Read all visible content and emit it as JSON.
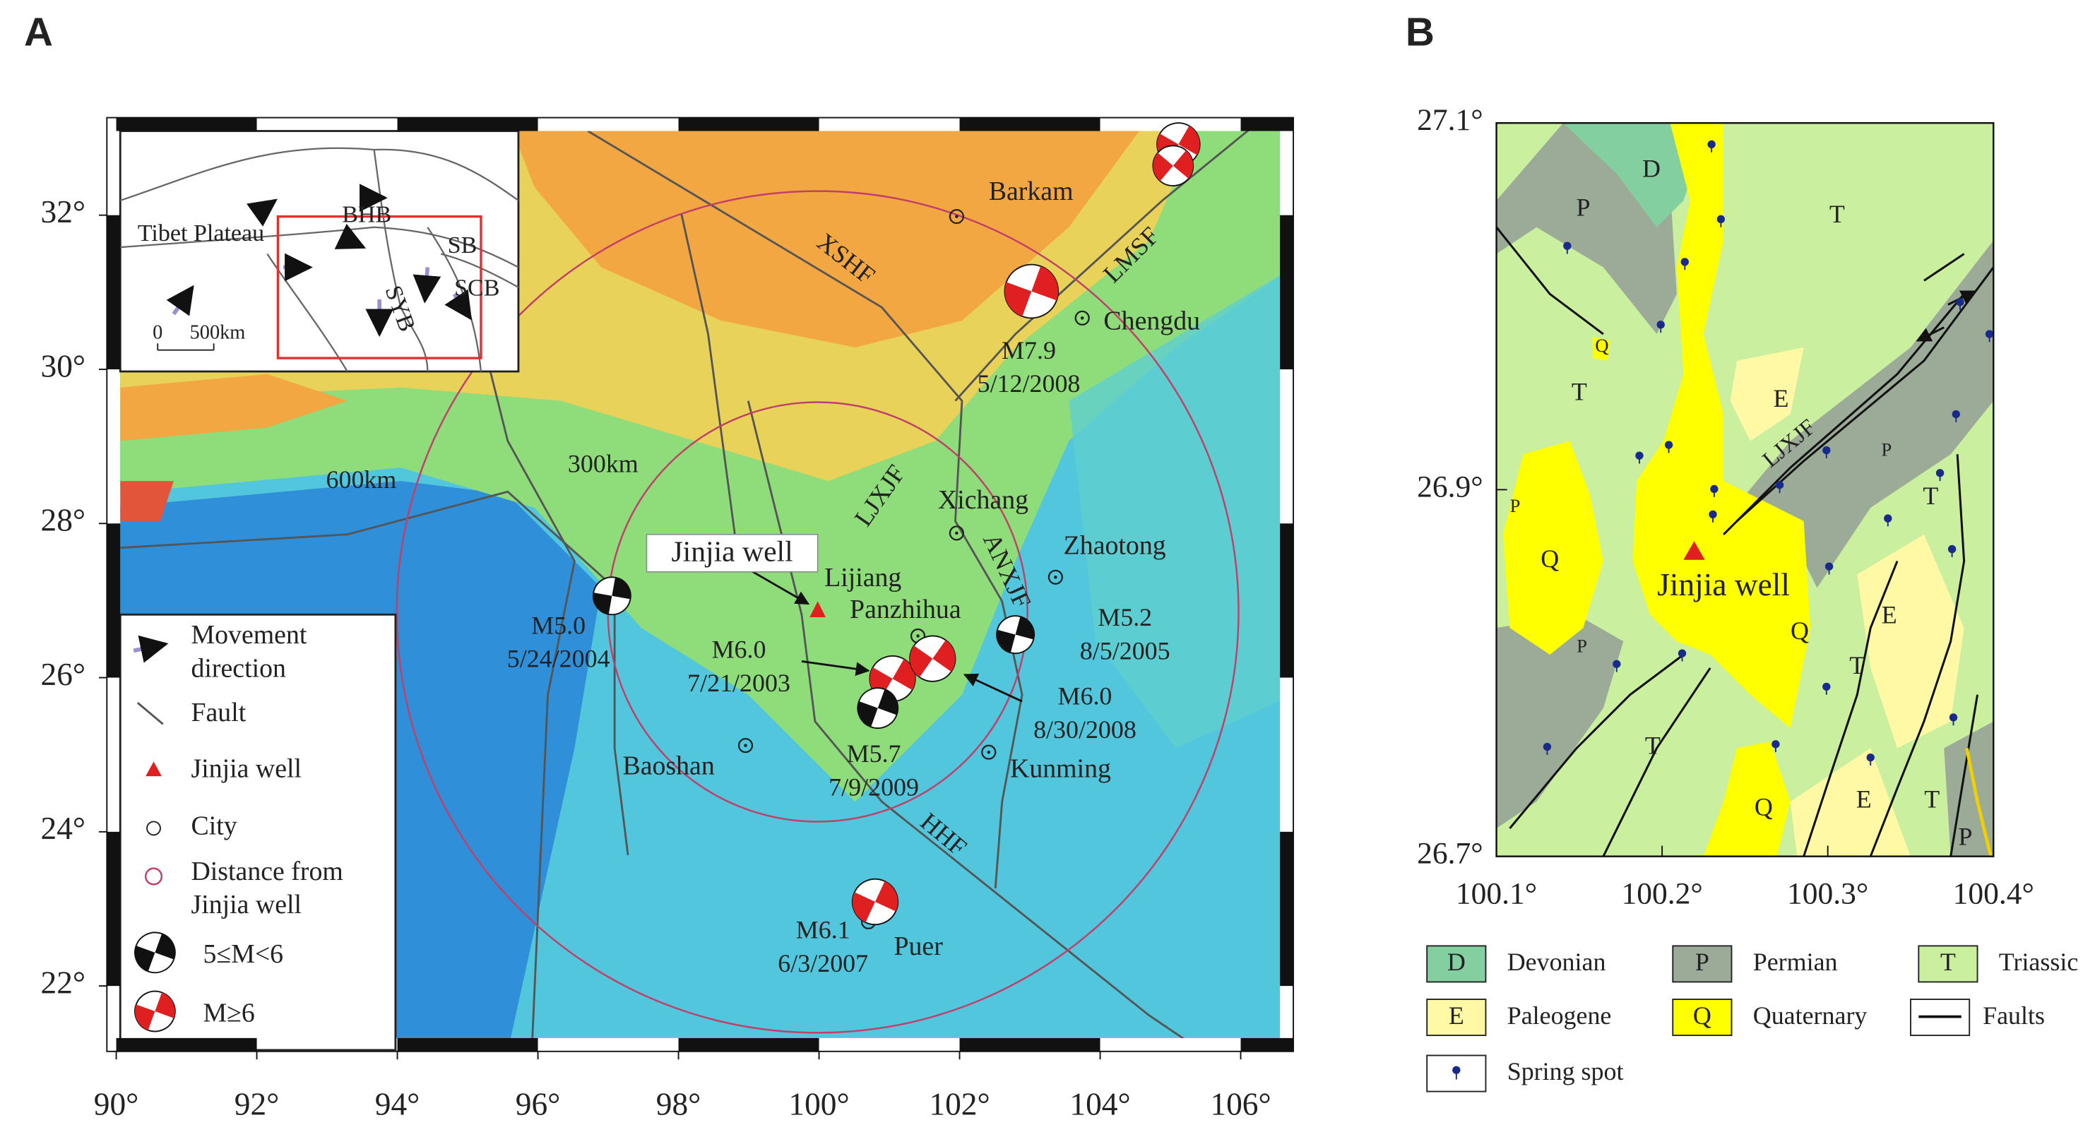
{
  "panel_a": {
    "label": "A",
    "x_ticks": [
      {
        "value": 90,
        "label": "90°"
      },
      {
        "value": 92,
        "label": "92°"
      },
      {
        "value": 94,
        "label": "94°"
      },
      {
        "value": 96,
        "label": "96°"
      },
      {
        "value": 98,
        "label": "98°"
      },
      {
        "value": 100,
        "label": "100°"
      },
      {
        "value": 102,
        "label": "102°"
      },
      {
        "value": 104,
        "label": "104°"
      },
      {
        "value": 106,
        "label": "106°"
      }
    ],
    "y_ticks": [
      {
        "value": 32,
        "label": "32°"
      },
      {
        "value": 30,
        "label": "30°"
      },
      {
        "value": 28,
        "label": "28°"
      },
      {
        "value": 26,
        "label": "26°"
      },
      {
        "value": 24,
        "label": "24°"
      },
      {
        "value": 22,
        "label": "22°"
      }
    ],
    "inset": {
      "labels": [
        "Tibet Plateau",
        "BHB",
        "SB",
        "SCB",
        "SYB"
      ],
      "scale": [
        "0",
        "500km"
      ]
    },
    "faults": [
      "XSHF",
      "LMSF",
      "LJXJF",
      "ANXJF",
      "HHF"
    ],
    "cities": [
      "Barkam",
      "Chengdu",
      "Xichang",
      "Zhaotong",
      "Panzhihua",
      "Kunming",
      "Baoshan",
      "Puer",
      "Lijiang"
    ],
    "distances": [
      "600km",
      "300km"
    ],
    "well": "Jinjia well",
    "earthquakes": [
      {
        "magnitude": "M7.9",
        "date": "5/12/2008"
      },
      {
        "magnitude": "M5.0",
        "date": "5/24/2004"
      },
      {
        "magnitude": "M6.0",
        "date": "7/21/2003"
      },
      {
        "magnitude": "M5.2",
        "date": "8/5/2005"
      },
      {
        "magnitude": "M6.0",
        "date": "8/30/2008"
      },
      {
        "magnitude": "M5.7",
        "date": "7/9/2009"
      },
      {
        "magnitude": "M6.1",
        "date": "6/3/2007"
      }
    ],
    "legend": [
      [
        "Movement",
        "direction"
      ],
      [
        "Fault"
      ],
      [
        "Jinjia well"
      ],
      [
        "City"
      ],
      [
        "Distance from",
        "Jinjia well"
      ],
      [
        "5≤M<6"
      ],
      [
        "M≥6"
      ]
    ]
  },
  "panel_b": {
    "label": "B",
    "x_ticks": [
      {
        "value": 100.1,
        "label": "100.1°"
      },
      {
        "value": 100.2,
        "label": "100.2°"
      },
      {
        "value": 100.3,
        "label": "100.3°"
      },
      {
        "value": 100.4,
        "label": "100.4°"
      }
    ],
    "y_ticks": [
      {
        "value": 27.1,
        "label": "27.1°"
      },
      {
        "value": 26.9,
        "label": "26.9°"
      },
      {
        "value": 26.7,
        "label": "26.7°"
      }
    ],
    "units": [
      "D",
      "P",
      "T",
      "Q",
      "T",
      "E",
      "P",
      "P",
      "T",
      "Q",
      "E",
      "Q",
      "P",
      "T",
      "T",
      "Q",
      "E",
      "T",
      "P"
    ],
    "fault": "LJXJF",
    "well": "Jinjia well",
    "legend": [
      {
        "code": "D",
        "name": "Devonian"
      },
      {
        "code": "P",
        "name": "Permian"
      },
      {
        "code": "T",
        "name": "Triassic"
      },
      {
        "code": "E",
        "name": "Paleogene"
      },
      {
        "code": "Q",
        "name": "Quaternary"
      },
      {
        "name": "Faults"
      },
      {
        "name": "Spring spot"
      }
    ]
  }
}
